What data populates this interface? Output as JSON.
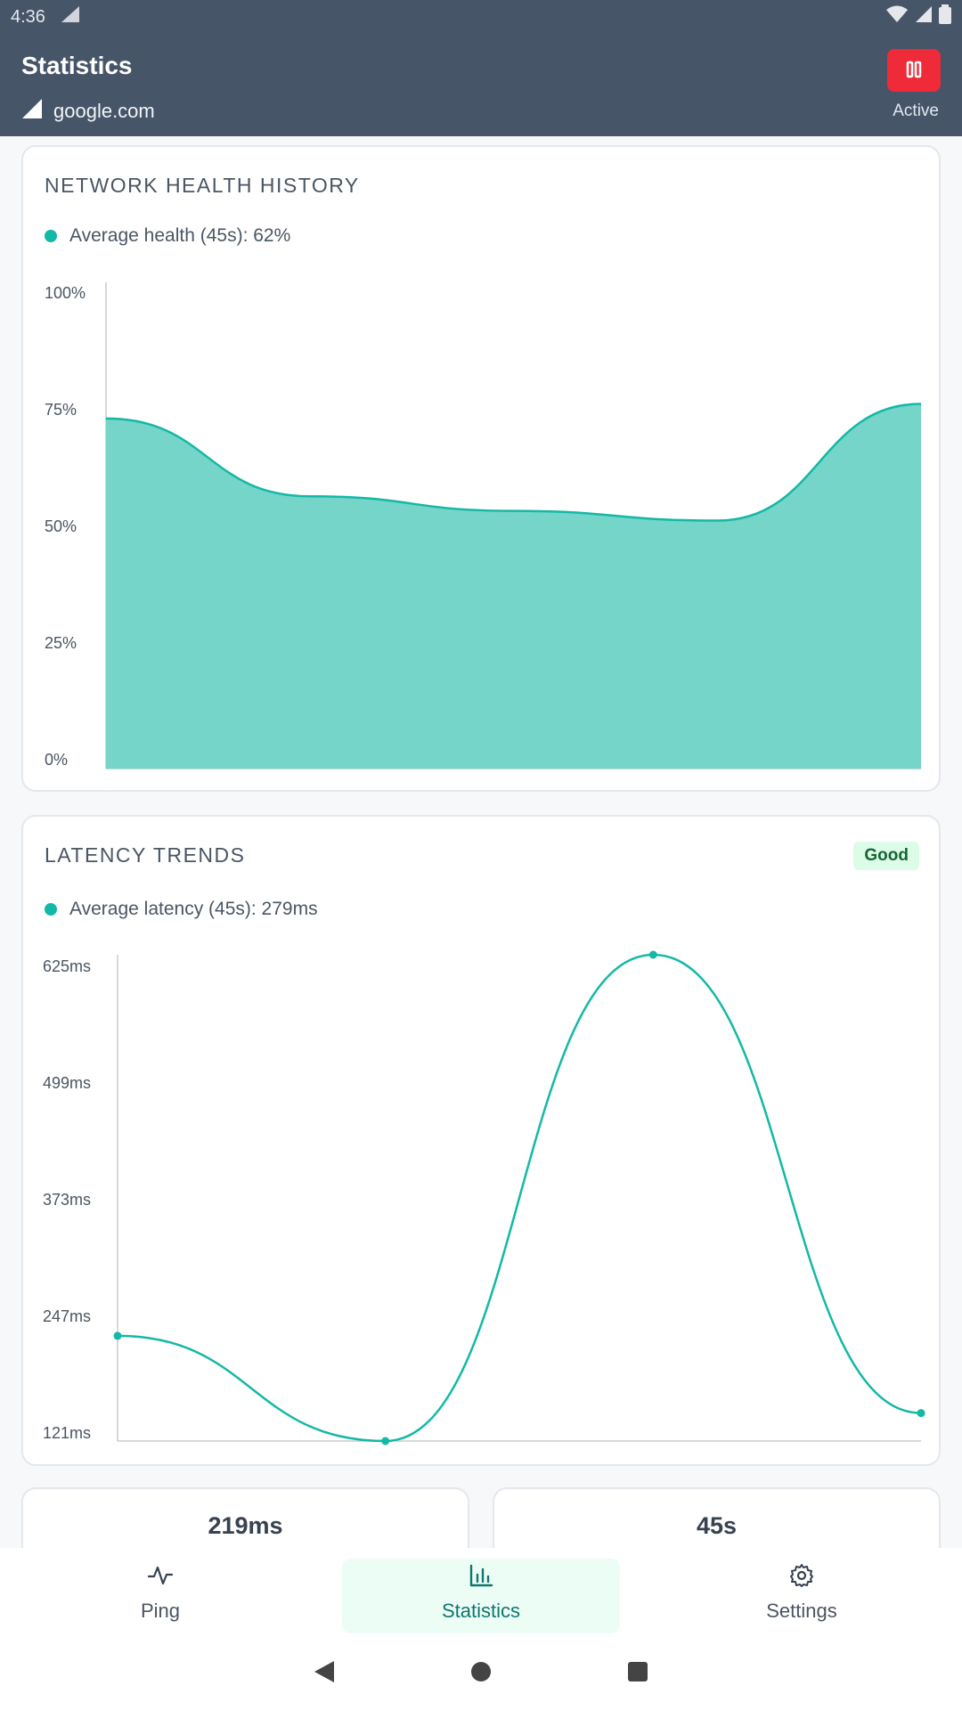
{
  "status_bar": {
    "time": "4:36"
  },
  "header": {
    "title": "Statistics",
    "host": "google.com",
    "status": "Active"
  },
  "health_card": {
    "title": "NETWORK HEALTH HISTORY",
    "legend": "Average health (45s): 62%",
    "y_ticks": [
      "100%",
      "75%",
      "50%",
      "25%",
      "0%"
    ]
  },
  "latency_card": {
    "title": "LATENCY TRENDS",
    "badge": "Good",
    "legend": "Average latency (45s): 279ms",
    "y_ticks": [
      "625ms",
      "499ms",
      "373ms",
      "247ms",
      "121ms"
    ]
  },
  "stats": {
    "left_value": "219ms",
    "right_value": "45s"
  },
  "nav": {
    "ping": "Ping",
    "statistics": "Statistics",
    "settings": "Settings"
  },
  "chart_data": [
    {
      "type": "area",
      "title": "",
      "xlabel": "",
      "ylabel": "",
      "ylim": [
        0,
        100
      ],
      "x": [
        0,
        1,
        2,
        3,
        4
      ],
      "series": [
        {
          "values": [
            72,
            56,
            53,
            51,
            75
          ]
        }
      ],
      "color": "#14b8a6",
      "fill": "#74d5c8",
      "grid": false
    },
    {
      "type": "line",
      "title": "",
      "xlabel": "",
      "ylabel": "",
      "ylim": [
        121,
        625
      ],
      "x": [
        0,
        1,
        2,
        3
      ],
      "series": [
        {
          "values": [
            230,
            121,
            625,
            150
          ]
        }
      ],
      "color": "#14b8a6",
      "grid": false
    }
  ]
}
